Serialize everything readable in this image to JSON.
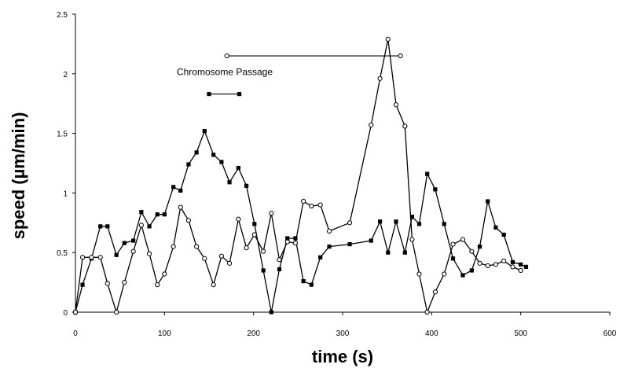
{
  "chart_data": {
    "type": "line",
    "title": "",
    "xlabel": "time (s)",
    "ylabel": "speed (µm/min)",
    "xlim": [
      0,
      600
    ],
    "ylim": [
      0,
      2.5
    ],
    "xticks": [
      "0",
      "100",
      "200",
      "300",
      "400",
      "500",
      "600"
    ],
    "yticks": [
      "0",
      "0.5",
      "1",
      "1.5",
      "2",
      "2.5"
    ],
    "grid": false,
    "legend": "none",
    "series": [
      {
        "marker": "filled-square",
        "color": "#000000",
        "points": [
          [
            0,
            0.0
          ],
          [
            8,
            0.23
          ],
          [
            18,
            0.45
          ],
          [
            28,
            0.72
          ],
          [
            36,
            0.72
          ],
          [
            46,
            0.48
          ],
          [
            55,
            0.58
          ],
          [
            65,
            0.6
          ],
          [
            74,
            0.84
          ],
          [
            83,
            0.72
          ],
          [
            92,
            0.82
          ],
          [
            100,
            0.82
          ],
          [
            110,
            1.05
          ],
          [
            118,
            1.02
          ],
          [
            127,
            1.24
          ],
          [
            136,
            1.34
          ],
          [
            145,
            1.52
          ],
          [
            155,
            1.32
          ],
          [
            164,
            1.26
          ],
          [
            173,
            1.09
          ],
          [
            183,
            1.21
          ],
          [
            192,
            1.06
          ],
          [
            201,
            0.74
          ],
          [
            211,
            0.35
          ],
          [
            220,
            0.0
          ],
          [
            229,
            0.36
          ],
          [
            238,
            0.62
          ],
          [
            247,
            0.62
          ],
          [
            256,
            0.26
          ],
          [
            265,
            0.23
          ],
          [
            275,
            0.46
          ],
          [
            285,
            0.55
          ],
          [
            308,
            0.57
          ],
          [
            332,
            0.6
          ],
          [
            342,
            0.76
          ],
          [
            351,
            0.5
          ],
          [
            360,
            0.76
          ],
          [
            370,
            0.5
          ],
          [
            378,
            0.8
          ],
          [
            386,
            0.74
          ],
          [
            395,
            1.16
          ],
          [
            404,
            1.03
          ],
          [
            414,
            0.74
          ],
          [
            424,
            0.45
          ],
          [
            435,
            0.31
          ],
          [
            445,
            0.35
          ],
          [
            454,
            0.55
          ],
          [
            463,
            0.93
          ],
          [
            472,
            0.71
          ],
          [
            481,
            0.65
          ],
          [
            491,
            0.42
          ],
          [
            500,
            0.4
          ],
          [
            506,
            0.38
          ]
        ]
      },
      {
        "marker": "open-circle",
        "color": "#000000",
        "points": [
          [
            0,
            0.0
          ],
          [
            8,
            0.46
          ],
          [
            18,
            0.46
          ],
          [
            28,
            0.46
          ],
          [
            36,
            0.24
          ],
          [
            46,
            0.0
          ],
          [
            55,
            0.25
          ],
          [
            65,
            0.51
          ],
          [
            74,
            0.73
          ],
          [
            83,
            0.49
          ],
          [
            92,
            0.23
          ],
          [
            100,
            0.32
          ],
          [
            110,
            0.55
          ],
          [
            118,
            0.88
          ],
          [
            127,
            0.77
          ],
          [
            136,
            0.55
          ],
          [
            145,
            0.45
          ],
          [
            155,
            0.23
          ],
          [
            164,
            0.47
          ],
          [
            173,
            0.41
          ],
          [
            183,
            0.78
          ],
          [
            192,
            0.54
          ],
          [
            201,
            0.65
          ],
          [
            211,
            0.51
          ],
          [
            220,
            0.83
          ],
          [
            229,
            0.44
          ],
          [
            238,
            0.59
          ],
          [
            247,
            0.58
          ],
          [
            256,
            0.93
          ],
          [
            265,
            0.89
          ],
          [
            275,
            0.9
          ],
          [
            285,
            0.68
          ],
          [
            308,
            0.75
          ],
          [
            332,
            1.57
          ],
          [
            342,
            1.96
          ],
          [
            351,
            2.29
          ],
          [
            360,
            1.74
          ],
          [
            370,
            1.56
          ],
          [
            378,
            0.61
          ],
          [
            386,
            0.32
          ],
          [
            395,
            0.0
          ],
          [
            404,
            0.17
          ],
          [
            414,
            0.32
          ],
          [
            424,
            0.57
          ],
          [
            435,
            0.61
          ],
          [
            445,
            0.51
          ],
          [
            454,
            0.41
          ],
          [
            463,
            0.39
          ],
          [
            472,
            0.4
          ],
          [
            481,
            0.43
          ],
          [
            491,
            0.38
          ],
          [
            500,
            0.35
          ]
        ]
      }
    ],
    "annotations": [
      {
        "label": "",
        "marker": "open-circle",
        "x1": 170,
        "x2": 365,
        "y": 2.15
      },
      {
        "label": "Chromosome Passage",
        "marker": "filled-square",
        "x1": 150,
        "x2": 184,
        "y": 1.83
      }
    ]
  }
}
